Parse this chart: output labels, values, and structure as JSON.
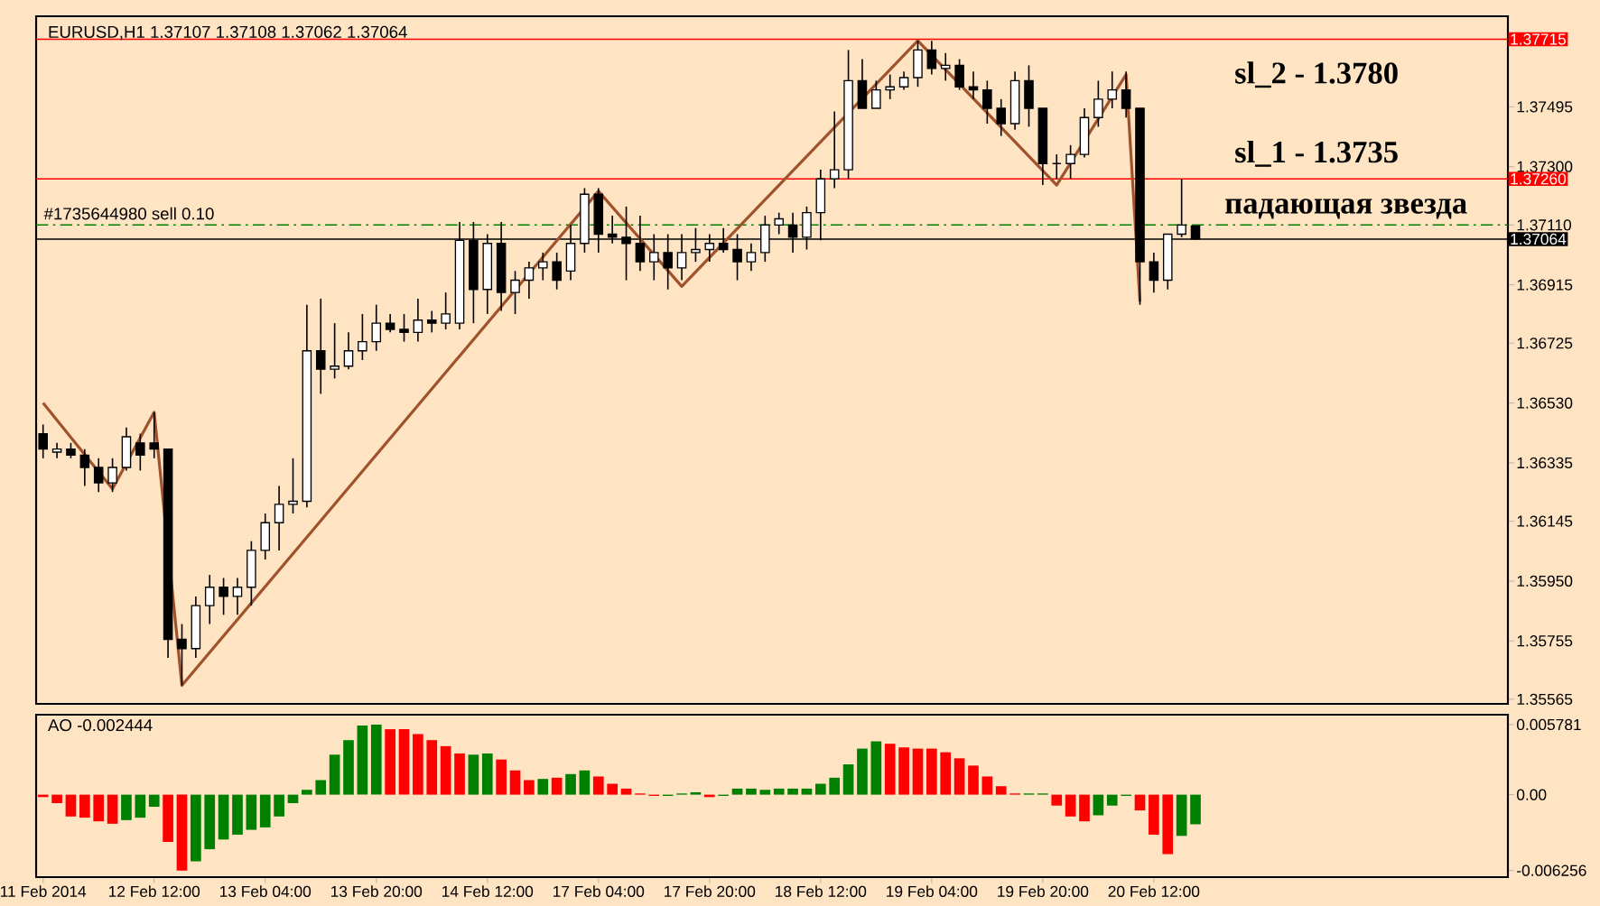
{
  "chart_data": [
    {
      "type": "candlestick",
      "title": "EURUSD,H1  1.37107 1.37108 1.37062 1.37064",
      "categories": [
        null,
        null,
        null,
        null,
        null,
        null,
        null,
        null,
        null,
        null,
        null,
        null,
        null,
        null,
        null,
        null,
        null,
        null,
        null,
        null,
        null,
        null,
        null,
        null,
        null,
        null,
        null,
        null,
        null,
        null,
        null,
        null,
        null,
        null,
        null,
        null,
        null,
        null,
        null,
        null,
        null,
        null,
        null,
        null,
        null,
        null,
        null,
        null,
        null,
        null,
        null,
        null,
        null,
        null,
        null,
        null,
        null,
        null,
        null,
        null,
        null,
        null,
        null,
        null,
        null,
        null,
        null,
        null,
        null,
        null,
        null,
        null,
        null,
        null,
        null,
        null,
        null,
        null,
        null,
        null,
        null,
        null,
        null,
        null,
        null,
        null,
        null,
        null,
        null,
        null,
        null,
        null,
        null,
        null,
        null,
        null,
        null,
        null,
        null,
        null,
        null,
        null,
        null,
        null,
        null,
        null
      ],
      "ohlc": [
        [
          1.3643,
          1.3646,
          1.3635,
          1.3638
        ],
        [
          1.3637,
          1.364,
          1.3635,
          1.3638
        ],
        [
          1.3638,
          1.364,
          1.3635,
          1.3636
        ],
        [
          1.3636,
          1.3638,
          1.3626,
          1.3632
        ],
        [
          1.3632,
          1.3635,
          1.3624,
          1.3627
        ],
        [
          1.3627,
          1.3635,
          1.3624,
          1.3632
        ],
        [
          1.3632,
          1.3645,
          1.3631,
          1.3642
        ],
        [
          1.364,
          1.3643,
          1.3631,
          1.3636
        ],
        [
          1.364,
          1.365,
          1.3635,
          1.3638
        ],
        [
          1.3638,
          1.3638,
          1.357,
          1.3576
        ],
        [
          1.3576,
          1.3581,
          1.3561,
          1.3573
        ],
        [
          1.3573,
          1.359,
          1.357,
          1.3587
        ],
        [
          1.3587,
          1.3597,
          1.3581,
          1.3593
        ],
        [
          1.3593,
          1.3596,
          1.3584,
          1.359
        ],
        [
          1.359,
          1.3596,
          1.3584,
          1.3593
        ],
        [
          1.3593,
          1.3608,
          1.3587,
          1.3605
        ],
        [
          1.3605,
          1.3617,
          1.3602,
          1.3614
        ],
        [
          1.3614,
          1.3626,
          1.3605,
          1.362
        ],
        [
          1.362,
          1.3635,
          1.3617,
          1.3621
        ],
        [
          1.3621,
          1.3685,
          1.3619,
          1.367
        ],
        [
          1.367,
          1.3687,
          1.3656,
          1.3664
        ],
        [
          1.3664,
          1.3679,
          1.3661,
          1.3665
        ],
        [
          1.3665,
          1.3676,
          1.3664,
          1.367
        ],
        [
          1.367,
          1.3682,
          1.3667,
          1.3673
        ],
        [
          1.3673,
          1.3685,
          1.367,
          1.3679
        ],
        [
          1.3679,
          1.3682,
          1.3676,
          1.3677
        ],
        [
          1.3677,
          1.3682,
          1.3673,
          1.3676
        ],
        [
          1.3676,
          1.3687,
          1.3673,
          1.368
        ],
        [
          1.368,
          1.3683,
          1.3676,
          1.3679
        ],
        [
          1.3679,
          1.3689,
          1.3677,
          1.3682
        ],
        [
          1.3679,
          1.3712,
          1.3677,
          1.3706
        ],
        [
          1.3706,
          1.3712,
          1.3679,
          1.369
        ],
        [
          1.369,
          1.3708,
          1.3682,
          1.3705
        ],
        [
          1.3705,
          1.3712,
          1.3683,
          1.3689
        ],
        [
          1.3689,
          1.3696,
          1.3682,
          1.3693
        ],
        [
          1.3693,
          1.3699,
          1.3687,
          1.3697
        ],
        [
          1.3697,
          1.3702,
          1.3693,
          1.3699
        ],
        [
          1.3699,
          1.3702,
          1.369,
          1.3693
        ],
        [
          1.3696,
          1.3711,
          1.3693,
          1.3705
        ],
        [
          1.3705,
          1.3723,
          1.3702,
          1.3721
        ],
        [
          1.3721,
          1.3723,
          1.3702,
          1.3708
        ],
        [
          1.3708,
          1.3714,
          1.3705,
          1.3707
        ],
        [
          1.3707,
          1.3717,
          1.3693,
          1.3705
        ],
        [
          1.3705,
          1.3714,
          1.3696,
          1.3699
        ],
        [
          1.3699,
          1.3708,
          1.3693,
          1.3702
        ],
        [
          1.3702,
          1.3708,
          1.369,
          1.3697
        ],
        [
          1.3697,
          1.3708,
          1.3693,
          1.3702
        ],
        [
          1.3702,
          1.371,
          1.3699,
          1.3703
        ],
        [
          1.3703,
          1.3708,
          1.3699,
          1.3705
        ],
        [
          1.3705,
          1.371,
          1.3702,
          1.3703
        ],
        [
          1.3703,
          1.3708,
          1.3693,
          1.3699
        ],
        [
          1.3699,
          1.3705,
          1.3696,
          1.3702
        ],
        [
          1.3702,
          1.3714,
          1.3699,
          1.3711
        ],
        [
          1.3711,
          1.3715,
          1.3708,
          1.3713
        ],
        [
          1.3711,
          1.3715,
          1.3702,
          1.3707
        ],
        [
          1.3707,
          1.3717,
          1.3703,
          1.3715
        ],
        [
          1.3715,
          1.3729,
          1.3706,
          1.3726
        ],
        [
          1.3726,
          1.3748,
          1.3723,
          1.3729
        ],
        [
          1.3729,
          1.3768,
          1.3726,
          1.3758
        ],
        [
          1.3758,
          1.3765,
          1.3749,
          1.3749
        ],
        [
          1.3749,
          1.3758,
          1.3749,
          1.3755
        ],
        [
          1.3755,
          1.376,
          1.3752,
          1.3756
        ],
        [
          1.3756,
          1.3761,
          1.3755,
          1.3759
        ],
        [
          1.3759,
          1.3771,
          1.3756,
          1.3768
        ],
        [
          1.3768,
          1.3771,
          1.376,
          1.3762
        ],
        [
          1.3762,
          1.3767,
          1.3758,
          1.3763
        ],
        [
          1.3763,
          1.3765,
          1.3755,
          1.3756
        ],
        [
          1.3756,
          1.3761,
          1.3752,
          1.3755
        ],
        [
          1.3755,
          1.3758,
          1.3744,
          1.3749
        ],
        [
          1.3749,
          1.3752,
          1.374,
          1.3744
        ],
        [
          1.3744,
          1.3761,
          1.3742,
          1.3758
        ],
        [
          1.3758,
          1.3763,
          1.3743,
          1.3749
        ],
        [
          1.3749,
          1.3749,
          1.3724,
          1.3731
        ],
        [
          1.3731,
          1.3734,
          1.3726,
          1.3731
        ],
        [
          1.3731,
          1.3737,
          1.3726,
          1.3734
        ],
        [
          1.3734,
          1.3749,
          1.3733,
          1.3746
        ],
        [
          1.3746,
          1.3758,
          1.3743,
          1.3752
        ],
        [
          1.3752,
          1.3761,
          1.3749,
          1.3755
        ],
        [
          1.3755,
          1.3761,
          1.3746,
          1.3749
        ],
        [
          1.3749,
          1.3749,
          1.3685,
          1.3699
        ],
        [
          1.3699,
          1.3702,
          1.3689,
          1.3693
        ],
        [
          1.3693,
          1.3708,
          1.369,
          1.3708
        ],
        [
          1.3708,
          1.3726,
          1.3707,
          1.3711
        ],
        [
          1.37107,
          1.37108,
          1.37062,
          1.37064
        ],
        null,
        null,
        null,
        null,
        null,
        null,
        null,
        null,
        null,
        null,
        null,
        null,
        null,
        null,
        null,
        null,
        null,
        null,
        null,
        null,
        null,
        null
      ],
      "series": [
        {
          "type": "line",
          "color": "#a0522d",
          "values": [
            1.3653,
            null,
            null,
            null,
            null,
            1.3625,
            null,
            null,
            1.365,
            null,
            1.3561,
            null,
            null,
            null,
            null,
            null,
            null,
            null,
            null,
            null,
            null,
            null,
            null,
            null,
            null,
            null,
            null,
            null,
            null,
            null,
            null,
            null,
            null,
            null,
            null,
            null,
            null,
            null,
            null,
            null,
            1.3722,
            null,
            null,
            null,
            null,
            null,
            1.3691,
            null,
            null,
            null,
            null,
            null,
            null,
            null,
            null,
            null,
            null,
            null,
            null,
            null,
            null,
            null,
            null,
            1.3771,
            null,
            null,
            null,
            null,
            null,
            null,
            null,
            null,
            null,
            1.3724,
            null,
            null,
            null,
            null,
            1.376,
            1.3686,
            null,
            null,
            null,
            null,
            null,
            null,
            null,
            null,
            null,
            null,
            null,
            null,
            null,
            null,
            null,
            null,
            null,
            null,
            null,
            null,
            null,
            null,
            null,
            null,
            null,
            null
          ]
        }
      ],
      "ylim": [
        1.3555,
        1.3779
      ],
      "yticks": [
        {
          "value": 1.37495,
          "label": "1.37495"
        },
        {
          "value": 1.373,
          "label": "1.37300"
        },
        {
          "value": 1.3711,
          "label": "1.37110"
        },
        {
          "value": 1.36915,
          "label": "1.36915"
        },
        {
          "value": 1.36725,
          "label": "1.36725"
        },
        {
          "value": 1.3653,
          "label": "1.36530"
        },
        {
          "value": 1.36335,
          "label": "1.36335"
        },
        {
          "value": 1.36145,
          "label": "1.36145"
        },
        {
          "value": 1.3595,
          "label": "1.35950"
        },
        {
          "value": 1.35755,
          "label": "1.35755"
        },
        {
          "value": 1.35565,
          "label": "1.35565"
        }
      ],
      "ref_lines": [
        {
          "axis": "y",
          "value": 1.37715,
          "label": "1.37715",
          "color": "#ff0000"
        },
        {
          "axis": "y",
          "value": 1.3726,
          "label": "1.37260",
          "color": "#ff0000"
        },
        {
          "axis": "y",
          "value": 1.37064,
          "label": "1.37064",
          "color": "#000000"
        },
        {
          "axis": "y",
          "value": 1.3711,
          "color": "#008000",
          "line_style": "dashed"
        }
      ],
      "annotations": [
        "sl_2 - 1.3780",
        "sl_1 - 1.3735",
        "падающая звезда",
        {
          "text": "#1735644980 sell 0.10",
          "y": 1.3711
        }
      ]
    },
    {
      "type": "bar",
      "title": "AO -0.002444",
      "categories": [
        "11 Feb 2014",
        null,
        null,
        null,
        null,
        null,
        null,
        null,
        "12 Feb 12:00",
        null,
        null,
        null,
        null,
        null,
        null,
        null,
        "13 Feb 04:00",
        null,
        null,
        null,
        null,
        null,
        null,
        null,
        "13 Feb 20:00",
        null,
        null,
        null,
        null,
        null,
        null,
        null,
        "14 Feb 12:00",
        null,
        null,
        null,
        null,
        null,
        null,
        null,
        "17 Feb 04:00",
        null,
        null,
        null,
        null,
        null,
        null,
        null,
        "17 Feb 20:00",
        null,
        null,
        null,
        null,
        null,
        null,
        null,
        "18 Feb 12:00",
        null,
        null,
        null,
        null,
        null,
        null,
        null,
        "19 Feb 04:00",
        null,
        null,
        null,
        null,
        null,
        null,
        null,
        "19 Feb 20:00",
        null,
        null,
        null,
        null,
        null,
        null,
        null,
        "20 Feb 12:00",
        null,
        null,
        null,
        null,
        null,
        null,
        null,
        null,
        null,
        null,
        null,
        null,
        null,
        null,
        null,
        null,
        null,
        null,
        null,
        null,
        null,
        null,
        null,
        null,
        null
      ],
      "values": [
        -0.0002,
        -0.0007,
        -0.0018,
        -0.0019,
        -0.0022,
        -0.0024,
        -0.0021,
        -0.0019,
        -0.001,
        -0.0039,
        -0.006256,
        -0.0055,
        -0.0045,
        -0.0037,
        -0.0033,
        -0.0029,
        -0.0027,
        -0.0018,
        -0.0007,
        0.0004,
        0.0012,
        0.0033,
        0.0045,
        0.0057,
        0.005781,
        0.0054,
        0.0054,
        0.005,
        0.0045,
        0.004,
        0.0034,
        0.0033,
        0.0034,
        0.0029,
        0.002,
        0.0012,
        0.0013,
        0.0014,
        0.0017,
        0.002,
        0.0015,
        0.0009,
        0.0005,
        0.0001,
        -0.0001,
        -0.0001,
        0.0001,
        0.0002,
        -0.0002,
        -0.0001,
        0.0005,
        0.0005,
        0.0004,
        0.0005,
        0.0005,
        0.0005,
        0.0009,
        0.0014,
        0.0025,
        0.0038,
        0.0044,
        0.0042,
        0.0039,
        0.0038,
        0.0038,
        0.0035,
        0.003,
        0.0024,
        0.0015,
        0.0007,
        0.0001,
        0.0001,
        0.0001,
        -0.0009,
        -0.0018,
        -0.0022,
        -0.0017,
        -0.0009,
        -0.0001,
        -0.0013,
        -0.0033,
        -0.0049,
        -0.0034,
        -0.002444,
        null,
        null,
        null,
        null,
        null,
        null,
        null,
        null,
        null,
        null,
        null,
        null,
        null,
        null,
        null,
        null,
        null,
        null,
        null,
        null,
        null,
        null
      ],
      "colors": [
        "#ff0000",
        "#ff0000",
        "#ff0000",
        "#ff0000",
        "#ff0000",
        "#ff0000",
        "#008000",
        "#008000",
        "#008000",
        "#ff0000",
        "#ff0000",
        "#008000",
        "#008000",
        "#008000",
        "#008000",
        "#008000",
        "#008000",
        "#008000",
        "#008000",
        "#008000",
        "#008000",
        "#008000",
        "#008000",
        "#008000",
        "#008000",
        "#ff0000",
        "#ff0000",
        "#ff0000",
        "#ff0000",
        "#ff0000",
        "#ff0000",
        "#008000",
        "#008000",
        "#ff0000",
        "#ff0000",
        "#ff0000",
        "#008000",
        "#ff0000",
        "#008000",
        "#008000",
        "#ff0000",
        "#ff0000",
        "#ff0000",
        "#ff0000",
        "#ff0000",
        "#008000",
        "#008000",
        "#008000",
        "#ff0000",
        "#008000",
        "#008000",
        "#008000",
        "#008000",
        "#008000",
        "#008000",
        "#008000",
        "#008000",
        "#008000",
        "#008000",
        "#008000",
        "#008000",
        "#ff0000",
        "#ff0000",
        "#ff0000",
        "#ff0000",
        "#ff0000",
        "#ff0000",
        "#ff0000",
        "#ff0000",
        "#ff0000",
        "#ff0000",
        "#008000",
        "#008000",
        "#ff0000",
        "#ff0000",
        "#ff0000",
        "#008000",
        "#008000",
        "#008000",
        "#ff0000",
        "#ff0000",
        "#ff0000",
        "#008000",
        "#008000",
        null,
        null,
        null,
        null,
        null,
        null,
        null,
        null,
        null,
        null,
        null,
        null,
        null,
        null,
        null,
        null,
        null,
        null,
        null,
        null,
        null,
        null
      ],
      "ylim": [
        -0.0068,
        0.0066
      ],
      "yticks": [
        {
          "value": 0.005781,
          "label": "0.005781"
        },
        {
          "value": 0,
          "label": "0.00"
        },
        {
          "value": -0.006256,
          "label": "-0.006256"
        }
      ]
    }
  ]
}
